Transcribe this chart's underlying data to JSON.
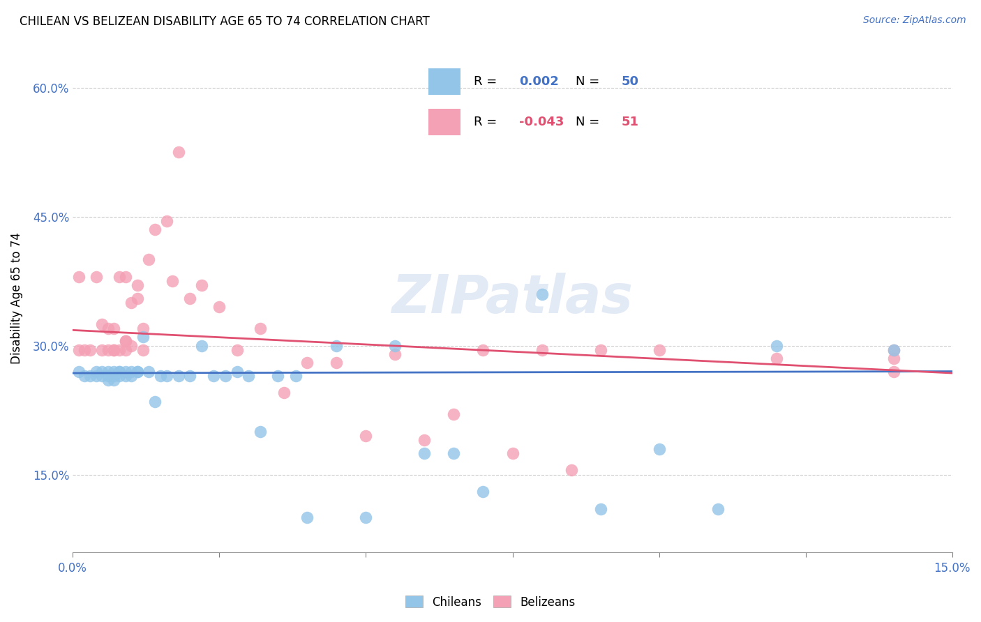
{
  "title": "CHILEAN VS BELIZEAN DISABILITY AGE 65 TO 74 CORRELATION CHART",
  "source": "Source: ZipAtlas.com",
  "ylabel": "Disability Age 65 to 74",
  "xlim": [
    0.0,
    0.15
  ],
  "ylim": [
    0.06,
    0.65
  ],
  "ytick_values": [
    0.15,
    0.3,
    0.45,
    0.6
  ],
  "chilean_color": "#92C5E8",
  "belizean_color": "#F4A0B5",
  "trendline_chilean_color": "#4472C4",
  "trendline_belizean_color": "#E05070",
  "background_color": "#FFFFFF",
  "watermark": "ZIPatlas",
  "chilean_trend_x": [
    0.0,
    0.15
  ],
  "chilean_trend_y": [
    0.268,
    0.27
  ],
  "belizean_trend_x": [
    0.0,
    0.15
  ],
  "belizean_trend_y": [
    0.318,
    0.268
  ],
  "legend_r_chilean": "R =  0.002",
  "legend_n_chilean": "N = 50",
  "legend_r_belizean": "R = -0.043",
  "legend_n_belizean": "N =  51",
  "chilean_x": [
    0.001,
    0.002,
    0.003,
    0.004,
    0.004,
    0.005,
    0.005,
    0.006,
    0.006,
    0.006,
    0.007,
    0.007,
    0.007,
    0.008,
    0.008,
    0.008,
    0.009,
    0.009,
    0.01,
    0.01,
    0.011,
    0.011,
    0.012,
    0.013,
    0.014,
    0.015,
    0.016,
    0.018,
    0.02,
    0.022,
    0.024,
    0.026,
    0.028,
    0.03,
    0.032,
    0.035,
    0.038,
    0.04,
    0.045,
    0.05,
    0.055,
    0.06,
    0.065,
    0.07,
    0.08,
    0.09,
    0.1,
    0.11,
    0.12,
    0.14
  ],
  "chilean_y": [
    0.27,
    0.265,
    0.265,
    0.265,
    0.27,
    0.27,
    0.265,
    0.26,
    0.27,
    0.265,
    0.265,
    0.27,
    0.26,
    0.27,
    0.265,
    0.27,
    0.265,
    0.27,
    0.265,
    0.27,
    0.27,
    0.27,
    0.31,
    0.27,
    0.235,
    0.265,
    0.265,
    0.265,
    0.265,
    0.3,
    0.265,
    0.265,
    0.27,
    0.265,
    0.2,
    0.265,
    0.265,
    0.1,
    0.3,
    0.1,
    0.3,
    0.175,
    0.175,
    0.13,
    0.36,
    0.11,
    0.18,
    0.11,
    0.3,
    0.295
  ],
  "belizean_x": [
    0.001,
    0.001,
    0.002,
    0.003,
    0.004,
    0.005,
    0.005,
    0.006,
    0.006,
    0.007,
    0.007,
    0.007,
    0.008,
    0.008,
    0.009,
    0.009,
    0.009,
    0.009,
    0.01,
    0.01,
    0.011,
    0.011,
    0.012,
    0.012,
    0.013,
    0.014,
    0.016,
    0.017,
    0.018,
    0.02,
    0.022,
    0.025,
    0.028,
    0.032,
    0.036,
    0.04,
    0.045,
    0.05,
    0.055,
    0.06,
    0.065,
    0.07,
    0.075,
    0.08,
    0.085,
    0.09,
    0.1,
    0.12,
    0.14,
    0.14,
    0.14
  ],
  "belizean_y": [
    0.295,
    0.38,
    0.295,
    0.295,
    0.38,
    0.295,
    0.325,
    0.32,
    0.295,
    0.295,
    0.32,
    0.295,
    0.295,
    0.38,
    0.295,
    0.305,
    0.305,
    0.38,
    0.3,
    0.35,
    0.37,
    0.355,
    0.295,
    0.32,
    0.4,
    0.435,
    0.445,
    0.375,
    0.525,
    0.355,
    0.37,
    0.345,
    0.295,
    0.32,
    0.245,
    0.28,
    0.28,
    0.195,
    0.29,
    0.19,
    0.22,
    0.295,
    0.175,
    0.295,
    0.155,
    0.295,
    0.295,
    0.285,
    0.285,
    0.295,
    0.27
  ]
}
